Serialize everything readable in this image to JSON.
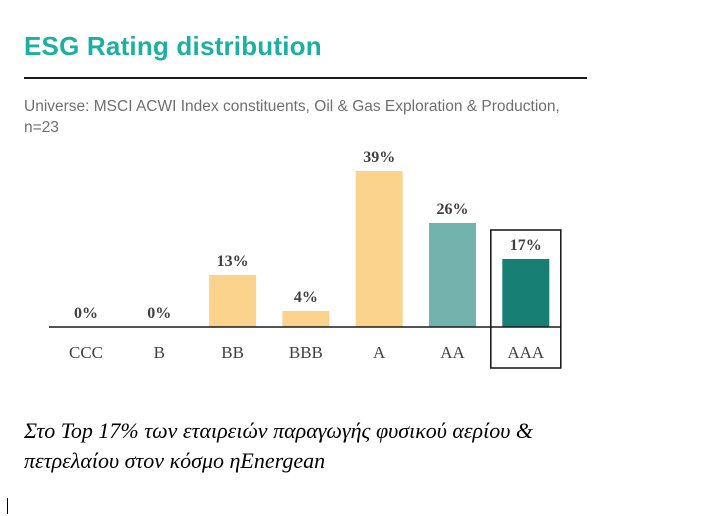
{
  "chart_data": {
    "type": "bar",
    "title": "ESG Rating distribution",
    "subtitle": "Universe: MSCI ACWI Index constituents, Oil & Gas Exploration & Production, n=23",
    "categories": [
      "CCC",
      "B",
      "BB",
      "BBB",
      "A",
      "AA",
      "AAA"
    ],
    "values": [
      0,
      0,
      13,
      4,
      39,
      26,
      17
    ],
    "data_labels": [
      "0%",
      "0%",
      "13%",
      "4%",
      "39%",
      "26%",
      "17%"
    ],
    "unit": "%",
    "ylim": [
      0,
      39
    ],
    "grid": false,
    "legend": "none",
    "highlighted_category": "AAA",
    "colors": {
      "title": "#1bb0a0",
      "laggard": "#fbd38d",
      "average": "#fbd38d",
      "AA": "#72b3ae",
      "AAA": "#177f74",
      "label": "#404040",
      "axis": "#1a1a1a"
    },
    "bar_colors": [
      "#fbd38d",
      "#fbd38d",
      "#fbd38d",
      "#fbd38d",
      "#fbd38d",
      "#72b3ae",
      "#177f74"
    ]
  },
  "caption": {
    "line1": "Στο Top 17% των εταιρειών παραγωγής φυσικού αερίου &",
    "line2": "πετρελαίου στον κόσμο ηEnergean"
  }
}
